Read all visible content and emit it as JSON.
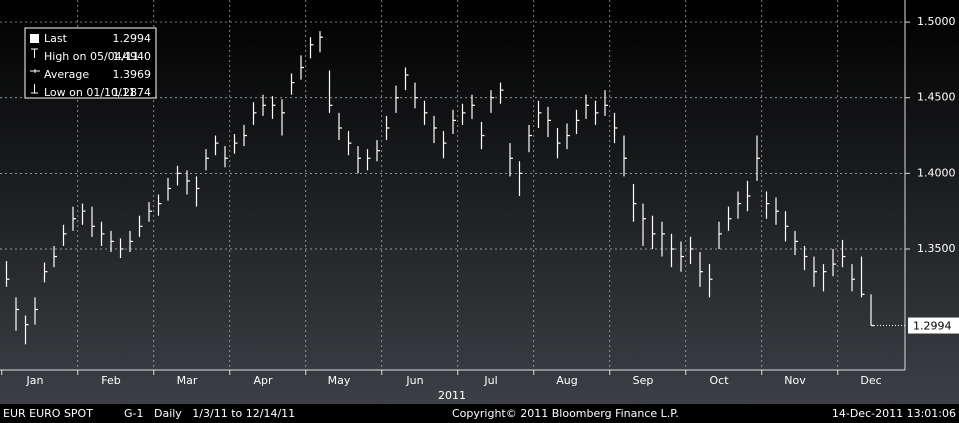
{
  "chart_data": {
    "type": "ohlc",
    "title": "EUR  EURO SPOT",
    "footer_left": "G-1   Daily   1/3/11 to 12/14/11",
    "copyright": "Copyright© 2011 Bloomberg Finance L.P.",
    "timestamp": "14-Dec-2011 13:01:06",
    "x_label": "2011",
    "legend": [
      {
        "name": "Last",
        "value": "1.2994"
      },
      {
        "name": "High on 05/04/11",
        "value": "1.4940"
      },
      {
        "name": "Average",
        "value": "1.3969"
      },
      {
        "name": "Low on 01/10/11",
        "value": "1.2874"
      }
    ],
    "color": "#ffffff",
    "grid": true,
    "ylim": [
      1.27,
      1.5146
    ],
    "yticks": [
      {
        "value": 1.35,
        "label": "1.3500"
      },
      {
        "value": 1.4,
        "label": "1.4000"
      },
      {
        "value": 1.45,
        "label": "1.4500"
      },
      {
        "value": 1.5,
        "label": "1.5000"
      }
    ],
    "categories": [
      null,
      null,
      null,
      "Jan",
      null,
      null,
      null,
      null,
      null,
      null,
      null,
      "Feb",
      null,
      null,
      null,
      null,
      null,
      null,
      null,
      "Mar",
      null,
      null,
      null,
      null,
      null,
      null,
      null,
      "Apr",
      null,
      null,
      null,
      null,
      null,
      null,
      null,
      "May",
      null,
      null,
      null,
      null,
      null,
      null,
      null,
      "Jun",
      null,
      null,
      null,
      null,
      null,
      null,
      null,
      "Jul",
      null,
      null,
      null,
      null,
      null,
      null,
      null,
      "Aug",
      null,
      null,
      null,
      null,
      null,
      null,
      null,
      "Sep",
      null,
      null,
      null,
      null,
      null,
      null,
      null,
      "Oct",
      null,
      null,
      null,
      null,
      null,
      null,
      null,
      "Nov",
      null,
      null,
      null,
      null,
      null,
      null,
      null,
      "Dec"
    ],
    "values": [
      1.33,
      1.31,
      1.3,
      1.31,
      1.335,
      1.345,
      1.36,
      1.37,
      1.375,
      1.365,
      1.36,
      1.355,
      1.35,
      1.355,
      1.365,
      1.375,
      1.38,
      1.39,
      1.4,
      1.395,
      1.39,
      1.41,
      1.42,
      1.41,
      1.42,
      1.425,
      1.44,
      1.445,
      1.445,
      1.44,
      1.46,
      1.47,
      1.485,
      1.49,
      1.445,
      1.43,
      1.42,
      1.41,
      1.41,
      1.415,
      1.43,
      1.45,
      1.465,
      1.45,
      1.44,
      1.43,
      1.42,
      1.435,
      1.44,
      1.445,
      1.425,
      1.45,
      1.455,
      1.41,
      1.4,
      1.425,
      1.44,
      1.435,
      1.42,
      1.425,
      1.435,
      1.445,
      1.44,
      1.445,
      1.43,
      1.41,
      1.38,
      1.37,
      1.36,
      1.36,
      1.35,
      1.345,
      1.35,
      1.335,
      1.33,
      1.36,
      1.37,
      1.38,
      1.385,
      1.41,
      1.38,
      1.375,
      1.365,
      1.355,
      1.345,
      1.335,
      1.335,
      1.34,
      1.345,
      1.33,
      1.32,
      1.2994
    ],
    "high": [
      1.342,
      1.318,
      1.306,
      1.318,
      1.341,
      1.352,
      1.366,
      1.378,
      1.38,
      1.378,
      1.368,
      1.362,
      1.357,
      1.362,
      1.372,
      1.381,
      1.386,
      1.397,
      1.405,
      1.402,
      1.398,
      1.416,
      1.425,
      1.418,
      1.426,
      1.432,
      1.447,
      1.452,
      1.451,
      1.449,
      1.466,
      1.478,
      1.49,
      1.494,
      1.468,
      1.44,
      1.428,
      1.418,
      1.416,
      1.422,
      1.438,
      1.458,
      1.47,
      1.46,
      1.448,
      1.438,
      1.428,
      1.442,
      1.446,
      1.452,
      1.434,
      1.455,
      1.46,
      1.42,
      1.408,
      1.432,
      1.448,
      1.444,
      1.43,
      1.433,
      1.442,
      1.452,
      1.448,
      1.455,
      1.44,
      1.425,
      1.393,
      1.38,
      1.372,
      1.368,
      1.36,
      1.355,
      1.358,
      1.348,
      1.34,
      1.368,
      1.378,
      1.388,
      1.395,
      1.425,
      1.388,
      1.384,
      1.375,
      1.362,
      1.352,
      1.345,
      1.34,
      1.35,
      1.356,
      1.34,
      1.345,
      1.32
    ],
    "low": [
      1.325,
      1.296,
      1.287,
      1.3,
      1.328,
      1.338,
      1.352,
      1.362,
      1.366,
      1.358,
      1.352,
      1.348,
      1.344,
      1.348,
      1.358,
      1.368,
      1.372,
      1.382,
      1.392,
      1.386,
      1.378,
      1.402,
      1.412,
      1.404,
      1.413,
      1.418,
      1.432,
      1.438,
      1.436,
      1.425,
      1.452,
      1.462,
      1.476,
      1.48,
      1.44,
      1.422,
      1.412,
      1.4,
      1.402,
      1.408,
      1.422,
      1.44,
      1.455,
      1.443,
      1.432,
      1.42,
      1.41,
      1.426,
      1.432,
      1.436,
      1.416,
      1.44,
      1.446,
      1.398,
      1.385,
      1.414,
      1.43,
      1.424,
      1.41,
      1.416,
      1.426,
      1.436,
      1.432,
      1.438,
      1.42,
      1.398,
      1.368,
      1.352,
      1.35,
      1.345,
      1.338,
      1.335,
      1.34,
      1.325,
      1.318,
      1.35,
      1.362,
      1.37,
      1.375,
      1.395,
      1.37,
      1.366,
      1.355,
      1.346,
      1.336,
      1.325,
      1.322,
      1.332,
      1.338,
      1.322,
      1.318,
      1.2994
    ]
  }
}
